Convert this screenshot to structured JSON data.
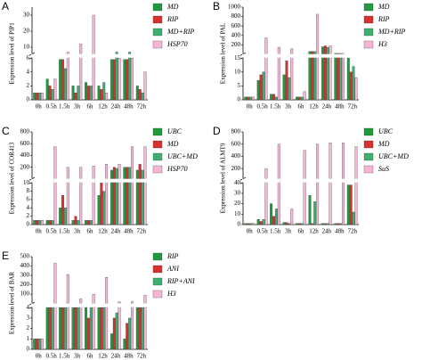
{
  "chart_data": [
    {
      "type": "bar",
      "panel": "A",
      "ylabel": "Expression level of PIP1",
      "categories": [
        "0h",
        "0.5h",
        "1.5h",
        "3h",
        "6h",
        "12h",
        "24h",
        "48h",
        "72h"
      ],
      "segments": [
        {
          "ylim": [
            0,
            6
          ],
          "yticks": [
            0,
            2,
            4,
            6
          ]
        },
        {
          "ylim": [
            6,
            35
          ],
          "yticks": [
            10,
            20,
            30
          ]
        }
      ],
      "series": [
        {
          "name": "MD",
          "color": "#1f9a3c",
          "values": [
            1,
            3,
            5.8,
            2,
            2.5,
            2,
            5.8,
            5.8,
            2
          ]
        },
        {
          "name": "RIP",
          "color": "#d7302f",
          "values": [
            1,
            2,
            5.8,
            1,
            2,
            1.5,
            5.8,
            5.8,
            1.5
          ]
        },
        {
          "name": "MD+RIP",
          "color": "#3fae72",
          "values": [
            1,
            1.5,
            4.5,
            2,
            2,
            2.5,
            7,
            7,
            1
          ]
        },
        {
          "name": "HSP70",
          "color": "#f7b6d8",
          "values": [
            1,
            3,
            7,
            12,
            30,
            1,
            6,
            6,
            4
          ]
        }
      ]
    },
    {
      "type": "bar",
      "panel": "B",
      "ylabel": "Expression level of PAL",
      "categories": [
        "0h",
        "0.5h",
        "1.5h",
        "3h",
        "6h",
        "12h",
        "24h",
        "48h",
        "72h"
      ],
      "segments": [
        {
          "ylim": [
            0,
            15
          ],
          "yticks": [
            0,
            5,
            10,
            15
          ]
        },
        {
          "ylim": [
            15,
            1000
          ],
          "yticks": [
            200,
            400,
            600,
            800,
            1000
          ]
        }
      ],
      "series": [
        {
          "name": "MD",
          "color": "#1f9a3c",
          "values": [
            1,
            7,
            2,
            9,
            1,
            60,
            160,
            20,
            15
          ]
        },
        {
          "name": "RIP",
          "color": "#d7302f",
          "values": [
            1,
            9,
            2,
            14,
            1,
            60,
            180,
            20,
            10
          ]
        },
        {
          "name": "MD+RIP",
          "color": "#3fae72",
          "values": [
            1,
            10,
            1,
            8,
            1,
            60,
            150,
            20,
            12
          ]
        },
        {
          "name": "H3",
          "color": "#f7b6d8",
          "values": [
            1,
            350,
            150,
            120,
            3,
            850,
            180,
            20,
            8
          ]
        }
      ]
    },
    {
      "type": "bar",
      "panel": "C",
      "ylabel": "Expression level of COR413",
      "categories": [
        "0h",
        "0.5h",
        "1.5h",
        "3h",
        "6h",
        "12h",
        "24h",
        "48h",
        "72h"
      ],
      "segments": [
        {
          "ylim": [
            0,
            10
          ],
          "yticks": [
            0,
            2,
            4,
            6,
            8,
            10
          ]
        },
        {
          "ylim": [
            10,
            800
          ],
          "yticks": [
            200,
            400,
            600,
            800
          ]
        }
      ],
      "series": [
        {
          "name": "UBC",
          "color": "#1f9a3c",
          "values": [
            1,
            1,
            4,
            1,
            1,
            7,
            150,
            200,
            150
          ]
        },
        {
          "name": "MD",
          "color": "#d7302f",
          "values": [
            1,
            1,
            7,
            2,
            1,
            10,
            200,
            200,
            250
          ]
        },
        {
          "name": "UBC+MD",
          "color": "#3fae72",
          "values": [
            1,
            1,
            4,
            1,
            1,
            8,
            180,
            200,
            150
          ]
        },
        {
          "name": "HSP70",
          "color": "#f7b6d8",
          "values": [
            1,
            550,
            200,
            200,
            220,
            250,
            250,
            550,
            550
          ]
        }
      ]
    },
    {
      "type": "bar",
      "panel": "D",
      "ylabel": "Expression level of ALMT9",
      "categories": [
        "0h",
        "0.5h",
        "1.5h",
        "3h",
        "6h",
        "12h",
        "24h",
        "48h",
        "72h"
      ],
      "segments": [
        {
          "ylim": [
            0,
            40
          ],
          "yticks": [
            0,
            10,
            20,
            30,
            40
          ]
        },
        {
          "ylim": [
            40,
            800
          ],
          "yticks": [
            200,
            400,
            600,
            800
          ]
        }
      ],
      "series": [
        {
          "name": "UBC",
          "color": "#1f9a3c",
          "values": [
            1,
            5,
            20,
            2,
            1,
            28,
            1,
            1,
            38
          ]
        },
        {
          "name": "MD",
          "color": "#d7302f",
          "values": [
            1,
            3,
            8,
            2,
            1,
            1,
            1,
            1,
            38
          ]
        },
        {
          "name": "UBC+MD",
          "color": "#3fae72",
          "values": [
            1,
            5,
            15,
            1,
            1,
            22,
            1,
            1,
            12
          ]
        },
        {
          "name": "SuS",
          "color": "#f7b6d8",
          "values": [
            1,
            200,
            600,
            15,
            500,
            600,
            620,
            620,
            560
          ]
        }
      ]
    },
    {
      "type": "bar",
      "panel": "E",
      "ylabel": "Expression level of BAR",
      "categories": [
        "0h",
        "0.5h",
        "1.5h",
        "3h",
        "6h",
        "12h",
        "24h",
        "48h",
        "72h"
      ],
      "segments": [
        {
          "ylim": [
            0,
            4
          ],
          "yticks": [
            0,
            1,
            2,
            3,
            4
          ]
        },
        {
          "ylim": [
            4,
            500
          ],
          "yticks": [
            100,
            200,
            300,
            400,
            500
          ]
        }
      ],
      "series": [
        {
          "name": "RIP",
          "color": "#1f9a3c",
          "values": [
            1,
            4,
            4,
            4,
            4,
            4,
            1.5,
            1,
            4
          ]
        },
        {
          "name": "ANI",
          "color": "#d7302f",
          "values": [
            1,
            4,
            4,
            4,
            3,
            4,
            3,
            2.5,
            4
          ]
        },
        {
          "name": "RIP+ANI",
          "color": "#3fae72",
          "values": [
            1,
            4,
            4,
            4,
            4,
            4,
            3.5,
            3,
            4
          ]
        },
        {
          "name": "H3",
          "color": "#f7b6d8",
          "values": [
            1,
            430,
            310,
            50,
            100,
            280,
            20,
            20,
            90
          ]
        }
      ]
    }
  ]
}
